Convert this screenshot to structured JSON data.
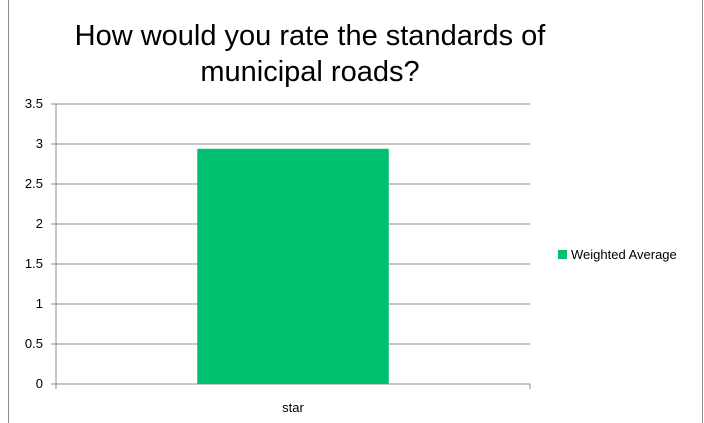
{
  "chart_data": {
    "type": "bar",
    "title": "How would you rate the standards of municipal roads?",
    "categories": [
      "star"
    ],
    "series": [
      {
        "name": "Weighted Average",
        "values": [
          2.94
        ],
        "color": "#00c070"
      }
    ],
    "y_ticks": [
      "0",
      "0.5",
      "1",
      "1.5",
      "2",
      "2.5",
      "3",
      "3.5"
    ],
    "ylim": [
      0,
      3.5
    ],
    "grid": true,
    "legend_position": "right",
    "xlabel": "",
    "ylabel": ""
  }
}
